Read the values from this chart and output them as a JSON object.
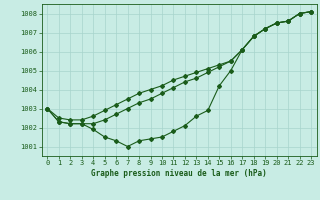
{
  "title": "Graphe pression niveau de la mer (hPa)",
  "background_color": "#c8ece4",
  "grid_color": "#a8d4cc",
  "line_color": "#1a5c1a",
  "x_ticks": [
    0,
    1,
    2,
    3,
    4,
    5,
    6,
    7,
    8,
    9,
    10,
    11,
    12,
    13,
    14,
    15,
    16,
    17,
    18,
    19,
    20,
    21,
    22,
    23
  ],
  "ylim": [
    1000.5,
    1008.5
  ],
  "yticks": [
    1001,
    1002,
    1003,
    1004,
    1005,
    1006,
    1007,
    1008
  ],
  "series1": [
    1003.0,
    1002.3,
    1002.2,
    1002.2,
    1001.9,
    1001.5,
    1001.3,
    1001.0,
    1001.3,
    1001.4,
    1001.5,
    1001.8,
    1002.1,
    1002.6,
    1002.9,
    1004.2,
    1005.0,
    1006.1,
    1006.8,
    1007.2,
    1007.5,
    1007.6,
    1008.0,
    1008.1
  ],
  "series2": [
    1003.0,
    1002.3,
    1002.2,
    1002.2,
    1002.2,
    1002.4,
    1002.7,
    1003.0,
    1003.3,
    1003.5,
    1003.8,
    1004.1,
    1004.4,
    1004.6,
    1004.9,
    1005.2,
    1005.5,
    1006.1,
    1006.8,
    1007.2,
    1007.5,
    1007.6,
    1008.0,
    1008.1
  ],
  "series3": [
    1003.0,
    1002.5,
    1002.4,
    1002.4,
    1002.6,
    1002.9,
    1003.2,
    1003.5,
    1003.8,
    1004.0,
    1004.2,
    1004.5,
    1004.7,
    1004.9,
    1005.1,
    1005.3,
    1005.5,
    1006.1,
    1006.8,
    1007.2,
    1007.5,
    1007.6,
    1008.0,
    1008.1
  ]
}
